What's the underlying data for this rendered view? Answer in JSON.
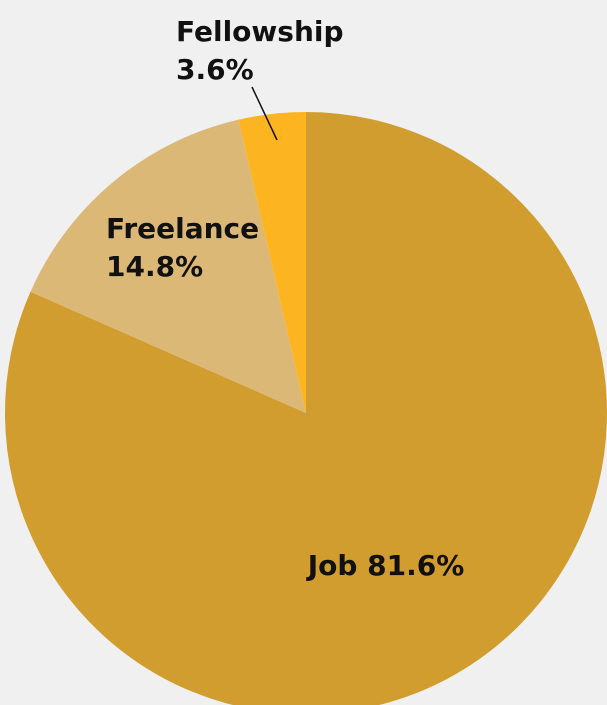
{
  "chart_data": {
    "type": "pie",
    "title": "",
    "slices": [
      {
        "label": "Job",
        "value": 81.6,
        "display": "Job 81.6%",
        "color": "#D19D2F"
      },
      {
        "label": "Freelance",
        "value": 14.8,
        "display_name": "Freelance",
        "display_pct": "14.8%",
        "color": "#DCB877"
      },
      {
        "label": "Fellowship",
        "value": 3.6,
        "display_name": "Fellowship",
        "display_pct": "3.6%",
        "color": "#FCB521"
      }
    ],
    "start_angle": "12 o'clock, counter-clockwise after Job"
  }
}
